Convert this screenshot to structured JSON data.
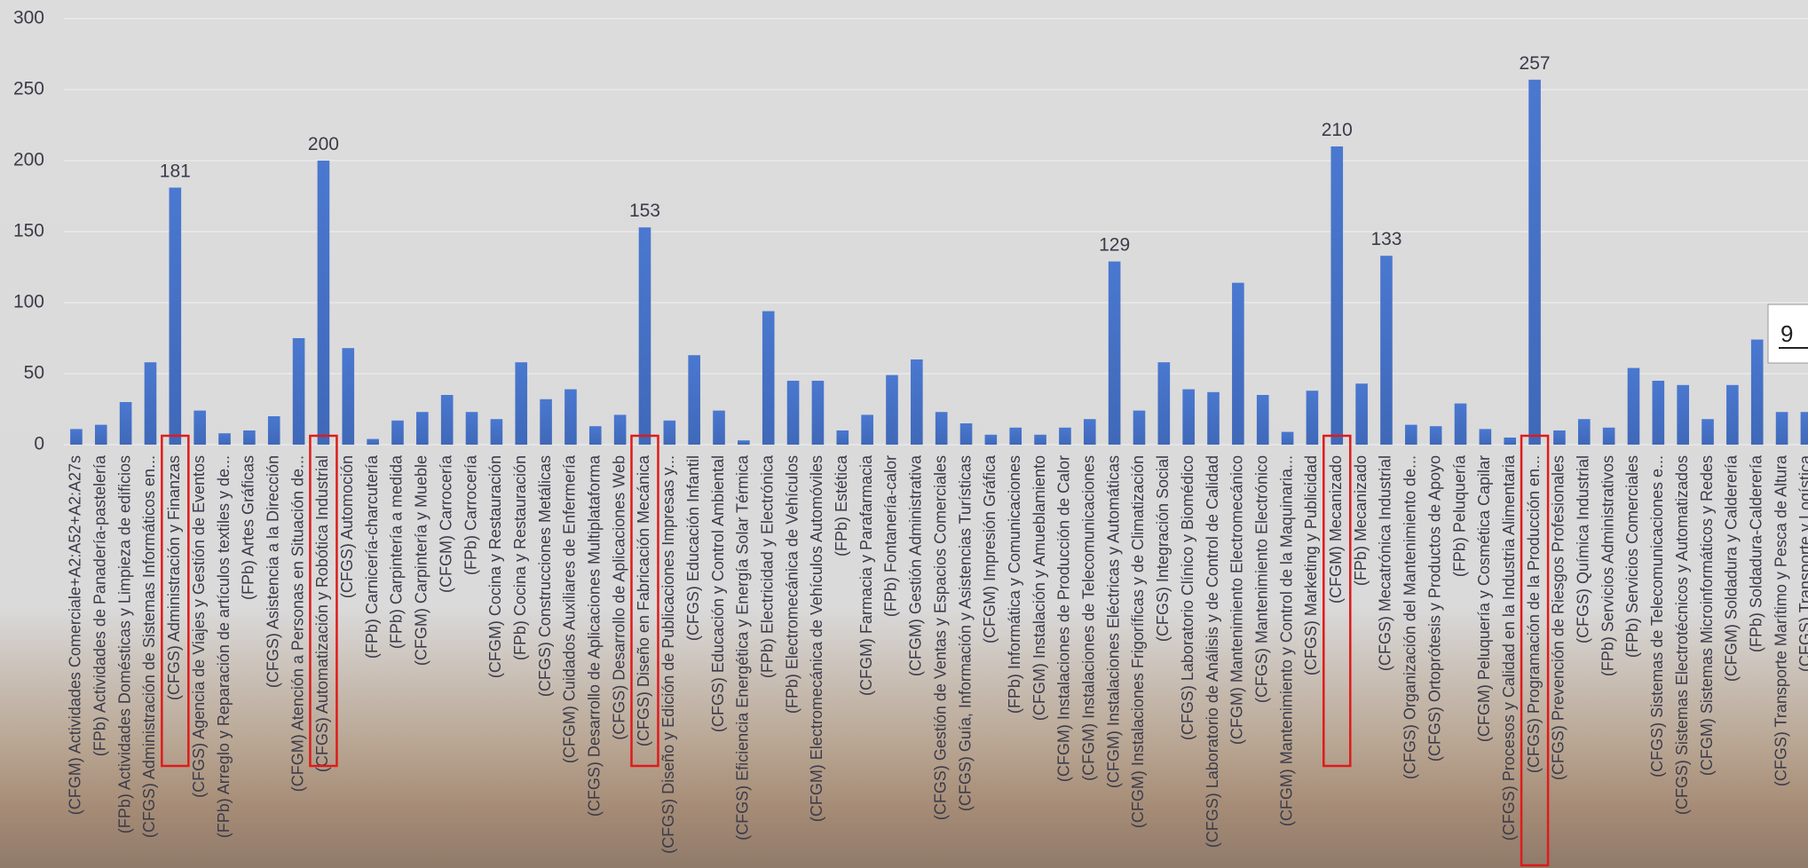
{
  "chart_data": {
    "type": "bar",
    "categories": [
      "(CFGM) Actividades Comerciale+A2:A52+A2:A27s",
      "(FPb) Actividades de Panadería-pastelería",
      "(FPb) Actividades Domésticas y Limpieza de edificios",
      "(CFGS) Administración de Sistemas Informáticos en...",
      "(CFGS) Administración y Finanzas",
      "(CFGS) Agencia de Viajes y Gestión de Eventos",
      "(FPb) Arreglo y Reparación de artículos textiles y de...",
      "(FPb) Artes Gráficas",
      "(CFGS) Asistencia a la Dirección",
      "(CFGM) Atención a Personas en Situación de...",
      "(CFGS) Automatización y Robótica Industrial",
      "(CFGS) Automoción",
      "(FPb) Carnicería-charcutería",
      "(FPb) Carpintería a medida",
      "(CFGM) Carpintería y Mueble",
      "(CFGM) Carrocería",
      "(FPb) Carrocería",
      "(CFGM) Cocina y Restauración",
      "(FPb) Cocina y Restauración",
      "(CFGS) Construcciones Metálicas",
      "(CFGM) Cuidados Auxiliares de Enfermería",
      "(CFGS) Desarrollo de Aplicaciones Multiplataforma",
      "(CFGS) Desarrollo de Aplicaciones Web",
      "(CFGS) Diseño en Fabricación Mecánica",
      "(CFGS) Diseño y Edición de Publicaciones Impresas y...",
      "(CFGS) Educación Infantil",
      "(CFGS) Educación y Control Ambiental",
      "(CFGS) Eficiencia Energética y Energía Solar Térmica",
      "(FPb) Electricidad y Electrónica",
      "(FPb) Electromecánica de Vehículos",
      "(CFGM) Electromecánica de Vehículos Automóviles",
      "(FPb) Estética",
      "(CFGM) Farmacia y Parafarmacia",
      "(FPb) Fontanería-calor",
      "(CFGM) Gestión Administrativa",
      "(CFGS) Gestión de Ventas y Espacios Comerciales",
      "(CFGS) Guía, Información y Asistencias Turísticas",
      "(CFGM) Impresión Gráfica",
      "(FPb) Informática y Comunicaciones",
      "(CFGM) Instalación y Amueblamiento",
      "(CFGM) Instalaciones de Producción de Calor",
      "(CFGM) Instalaciones de Telecomunicaciones",
      "(CFGM) Instalaciones Eléctricas y Automáticas",
      "(CFGM) Instalaciones Frigoríficas y de Climatización",
      "(CFGS) Integración Social",
      "(CFGS) Laboratorio Clínico y Biomédico",
      "(CFGS) Laboratorio de Análisis y de Control de Calidad",
      "(CFGM) Mantenimiento Electromecánico",
      "(CFGS) Mantenimiento Electrónico",
      "(CFGM) Mantenimiento y Control de la Maquinaria...",
      "(CFGS) Marketing y Publicidad",
      "(CFGM) Mecanizado",
      "(FPb) Mecanizado",
      "(CFGS) Mecatrónica Industrial",
      "(CFGS) Organización del Mantenimiento de...",
      "(CFGS) Ortoprótesis y Productos de Apoyo",
      "(FPb) Peluquería",
      "(CFGM) Peluquería y Cosmética Capilar",
      "(CFGS) Procesos y Calidad en la Industria Alimentaria",
      "(CFGS) Programación de la Producción en...",
      "(CFGS) Prevención de Riesgos Profesionales",
      "(CFGS) Química Industrial",
      "(FPb) Servicios Administrativos",
      "(FPb) Servicios Comerciales",
      "(CFGS) Sistemas de Telecomunicaciones e...",
      "(CFGS) Sistemas Electrotécnicos y Automatizados",
      "(CFGM) Sistemas Microinformáticos y Redes",
      "(CFGM) Soldadura y Calderería",
      "(FPb) Soldadura-Calderería",
      "(CFGS) Transporte Marítimo y Pesca de Altura",
      "(CFGS) Transporte y Logística"
    ],
    "values": [
      11,
      14,
      30,
      58,
      181,
      24,
      8,
      10,
      20,
      75,
      200,
      68,
      4,
      17,
      23,
      35,
      23,
      18,
      58,
      32,
      39,
      13,
      21,
      153,
      17,
      63,
      24,
      3,
      94,
      45,
      45,
      10,
      21,
      49,
      60,
      23,
      15,
      7,
      12,
      7,
      12,
      18,
      129,
      24,
      58,
      39,
      37,
      114,
      35,
      9,
      38,
      210,
      43,
      133,
      14,
      13,
      29,
      11,
      5,
      257,
      10,
      18,
      12,
      54,
      45,
      42,
      18,
      42,
      74,
      23,
      23
    ],
    "value_labels": [
      null,
      null,
      null,
      null,
      "181",
      null,
      null,
      null,
      null,
      null,
      "200",
      null,
      null,
      null,
      null,
      null,
      null,
      null,
      null,
      null,
      null,
      null,
      null,
      "153",
      null,
      null,
      null,
      null,
      null,
      null,
      null,
      null,
      null,
      null,
      null,
      null,
      null,
      null,
      null,
      null,
      null,
      null,
      "129",
      null,
      null,
      null,
      null,
      null,
      null,
      null,
      null,
      "210",
      null,
      "133",
      null,
      null,
      null,
      null,
      null,
      "257",
      null,
      null,
      null,
      null,
      null,
      null,
      null,
      null,
      null,
      null,
      null
    ],
    "color": "#4674c9",
    "ylim": [
      0,
      300
    ],
    "yticks": [
      0,
      50,
      100,
      150,
      200,
      250,
      300
    ],
    "grid": true,
    "annotation": "9"
  }
}
